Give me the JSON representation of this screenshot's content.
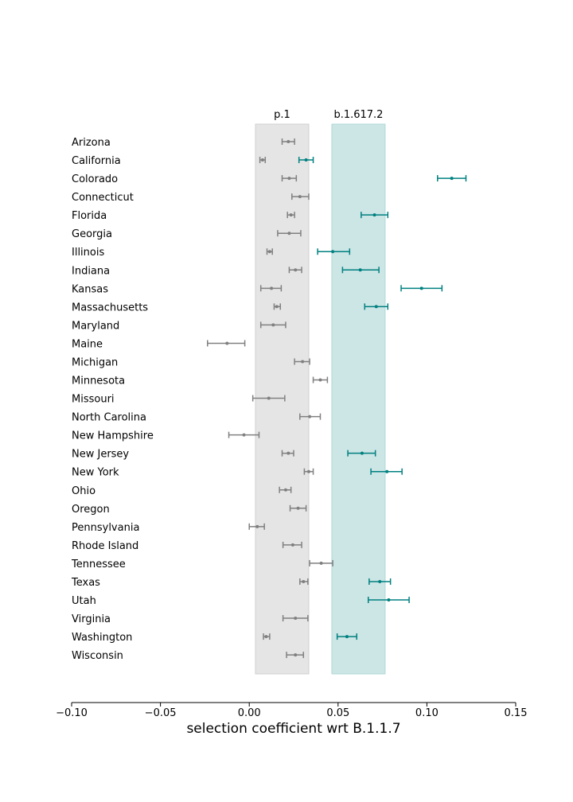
{
  "chart_data": {
    "type": "errorbar",
    "xlabel": "selection coefficient wrt B.1.1.7",
    "xlim": [
      -0.1,
      0.15
    ],
    "xticks": [
      -0.1,
      -0.05,
      0.0,
      0.05,
      0.1,
      0.15
    ],
    "xtick_labels": [
      "−0.10",
      "−0.05",
      "0.00",
      "0.05",
      "0.10",
      "0.15"
    ],
    "bands": [
      {
        "label": "p.1",
        "x0": 0.0035,
        "x1": 0.0335,
        "color": "#e5e5e5"
      },
      {
        "label": "b.1.617.2",
        "x0": 0.0465,
        "x1": 0.0765,
        "color": "#cce5e5"
      }
    ],
    "colors": {
      "p1": "#808080",
      "delta": "#008080"
    },
    "series": [
      {
        "state": "Arizona",
        "variant": "p1",
        "value": 0.022,
        "lo": 0.0185,
        "hi": 0.0255
      },
      {
        "state": "California",
        "variant": "delta",
        "value": 0.032,
        "lo": 0.028,
        "hi": 0.036
      },
      {
        "state": "California",
        "variant": "p1",
        "value": 0.0075,
        "lo": 0.006,
        "hi": 0.009
      },
      {
        "state": "Colorado",
        "variant": "delta",
        "value": 0.114,
        "lo": 0.106,
        "hi": 0.122
      },
      {
        "state": "Colorado",
        "variant": "p1",
        "value": 0.0225,
        "lo": 0.0185,
        "hi": 0.0265
      },
      {
        "state": "Connecticut",
        "variant": "p1",
        "value": 0.0285,
        "lo": 0.024,
        "hi": 0.0335
      },
      {
        "state": "Florida",
        "variant": "delta",
        "value": 0.0705,
        "lo": 0.063,
        "hi": 0.078
      },
      {
        "state": "Florida",
        "variant": "p1",
        "value": 0.0235,
        "lo": 0.0215,
        "hi": 0.0255
      },
      {
        "state": "Georgia",
        "variant": "p1",
        "value": 0.0225,
        "lo": 0.016,
        "hi": 0.029
      },
      {
        "state": "Illinois",
        "variant": "delta",
        "value": 0.047,
        "lo": 0.0385,
        "hi": 0.0565
      },
      {
        "state": "Illinois",
        "variant": "p1",
        "value": 0.0115,
        "lo": 0.01,
        "hi": 0.013
      },
      {
        "state": "Indiana",
        "variant": "delta",
        "value": 0.0625,
        "lo": 0.0525,
        "hi": 0.073
      },
      {
        "state": "Indiana",
        "variant": "p1",
        "value": 0.026,
        "lo": 0.0225,
        "hi": 0.0295
      },
      {
        "state": "Kansas",
        "variant": "delta",
        "value": 0.097,
        "lo": 0.0855,
        "hi": 0.1085
      },
      {
        "state": "Kansas",
        "variant": "p1",
        "value": 0.0125,
        "lo": 0.0065,
        "hi": 0.018
      },
      {
        "state": "Massachusetts",
        "variant": "delta",
        "value": 0.0715,
        "lo": 0.065,
        "hi": 0.078
      },
      {
        "state": "Massachusetts",
        "variant": "p1",
        "value": 0.0155,
        "lo": 0.014,
        "hi": 0.0175
      },
      {
        "state": "Maryland",
        "variant": "p1",
        "value": 0.0135,
        "lo": 0.0065,
        "hi": 0.0205
      },
      {
        "state": "Maine",
        "variant": "p1",
        "value": -0.0125,
        "lo": -0.0235,
        "hi": -0.0025
      },
      {
        "state": "Michigan",
        "variant": "p1",
        "value": 0.03,
        "lo": 0.0255,
        "hi": 0.034
      },
      {
        "state": "Minnesota",
        "variant": "p1",
        "value": 0.04,
        "lo": 0.036,
        "hi": 0.044
      },
      {
        "state": "Missouri",
        "variant": "p1",
        "value": 0.011,
        "lo": 0.002,
        "hi": 0.02
      },
      {
        "state": "North Carolina",
        "variant": "p1",
        "value": 0.034,
        "lo": 0.0285,
        "hi": 0.04
      },
      {
        "state": "New Hampshire",
        "variant": "p1",
        "value": -0.003,
        "lo": -0.0115,
        "hi": 0.0055
      },
      {
        "state": "New Jersey",
        "variant": "delta",
        "value": 0.0635,
        "lo": 0.0555,
        "hi": 0.071
      },
      {
        "state": "New Jersey",
        "variant": "p1",
        "value": 0.022,
        "lo": 0.0185,
        "hi": 0.025
      },
      {
        "state": "New York",
        "variant": "delta",
        "value": 0.0775,
        "lo": 0.0685,
        "hi": 0.086
      },
      {
        "state": "New York",
        "variant": "p1",
        "value": 0.0335,
        "lo": 0.031,
        "hi": 0.036
      },
      {
        "state": "Ohio",
        "variant": "p1",
        "value": 0.0205,
        "lo": 0.017,
        "hi": 0.0235
      },
      {
        "state": "Oregon",
        "variant": "p1",
        "value": 0.0275,
        "lo": 0.023,
        "hi": 0.032
      },
      {
        "state": "Pennsylvania",
        "variant": "p1",
        "value": 0.0045,
        "lo": 0.0,
        "hi": 0.0085
      },
      {
        "state": "Rhode Island",
        "variant": "p1",
        "value": 0.0245,
        "lo": 0.019,
        "hi": 0.0295
      },
      {
        "state": "Tennessee",
        "variant": "p1",
        "value": 0.0405,
        "lo": 0.034,
        "hi": 0.047
      },
      {
        "state": "Texas",
        "variant": "delta",
        "value": 0.0735,
        "lo": 0.0675,
        "hi": 0.0795
      },
      {
        "state": "Texas",
        "variant": "p1",
        "value": 0.0305,
        "lo": 0.0285,
        "hi": 0.033
      },
      {
        "state": "Utah",
        "variant": "delta",
        "value": 0.0785,
        "lo": 0.067,
        "hi": 0.09
      },
      {
        "state": "Virginia",
        "variant": "p1",
        "value": 0.026,
        "lo": 0.019,
        "hi": 0.033
      },
      {
        "state": "Washington",
        "variant": "delta",
        "value": 0.055,
        "lo": 0.0495,
        "hi": 0.0605
      },
      {
        "state": "Washington",
        "variant": "p1",
        "value": 0.0095,
        "lo": 0.008,
        "hi": 0.0115
      },
      {
        "state": "Wisconsin",
        "variant": "p1",
        "value": 0.026,
        "lo": 0.021,
        "hi": 0.0305
      }
    ],
    "states": [
      "Arizona",
      "California",
      "Colorado",
      "Connecticut",
      "Florida",
      "Georgia",
      "Illinois",
      "Indiana",
      "Kansas",
      "Massachusetts",
      "Maryland",
      "Maine",
      "Michigan",
      "Minnesota",
      "Missouri",
      "North Carolina",
      "New Hampshire",
      "New Jersey",
      "New York",
      "Ohio",
      "Oregon",
      "Pennsylvania",
      "Rhode Island",
      "Tennessee",
      "Texas",
      "Utah",
      "Virginia",
      "Washington",
      "Wisconsin"
    ]
  }
}
